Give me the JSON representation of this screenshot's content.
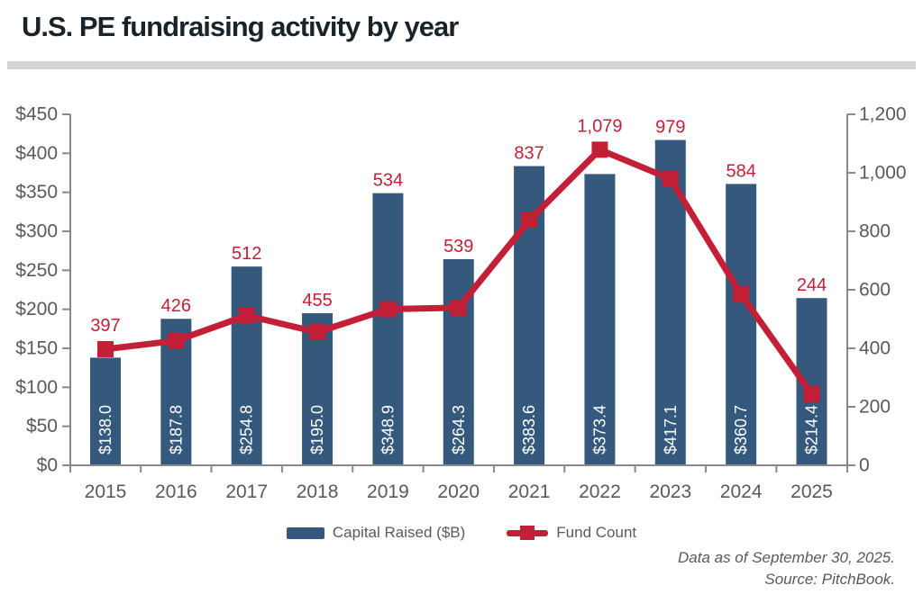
{
  "page": {
    "footer": {
      "line1": "Data as of September 30, 2025.",
      "line2": "Source: PitchBook."
    }
  },
  "chart_data": {
    "type": "combo (bar + line)",
    "title": "U.S. PE fundraising activity by year",
    "categories": [
      "2015",
      "2016",
      "2017",
      "2018",
      "2019",
      "2020",
      "2021",
      "2022",
      "2023",
      "2024",
      "2025"
    ],
    "series": [
      {
        "name": "Capital Raised ($B)",
        "chart_type": "bar",
        "axis": "left",
        "values": [
          138.0,
          187.8,
          254.8,
          195.0,
          348.9,
          264.3,
          383.6,
          373.4,
          417.1,
          360.7,
          214.4
        ],
        "data_labels": [
          "$138.0",
          "$187.8",
          "$254.8",
          "$195.0",
          "$348.9",
          "$264.3",
          "$383.6",
          "$373.4",
          "$417.1",
          "$360.7",
          "$214.4"
        ]
      },
      {
        "name": "Fund Count",
        "chart_type": "line",
        "axis": "right",
        "values": [
          397,
          426,
          512,
          455,
          534,
          539,
          837,
          1079,
          979,
          584,
          244
        ],
        "data_labels": [
          "397",
          "426",
          "512",
          "455",
          "534",
          "539",
          "837",
          "1,079",
          "979",
          "584",
          "244"
        ]
      }
    ],
    "left_axis": {
      "min": 0,
      "max": 450,
      "ticks": [
        "$0",
        "$50",
        "$100",
        "$150",
        "$200",
        "$250",
        "$300",
        "$350",
        "$400",
        "$450"
      ]
    },
    "right_axis": {
      "min": 0,
      "max": 1200,
      "ticks": [
        "0",
        "200",
        "400",
        "600",
        "800",
        "1,000",
        "1,200"
      ]
    },
    "legend_position": "bottom-center",
    "grid": false,
    "colors": {
      "bar": "#35597c",
      "line": "#c31f36",
      "bar_label": "#ffffff",
      "data_label": "#c31f36",
      "axis": "#87898c",
      "tick_label": "#58595b",
      "title": "#1a232a",
      "divider": "#d3d4d6"
    }
  }
}
